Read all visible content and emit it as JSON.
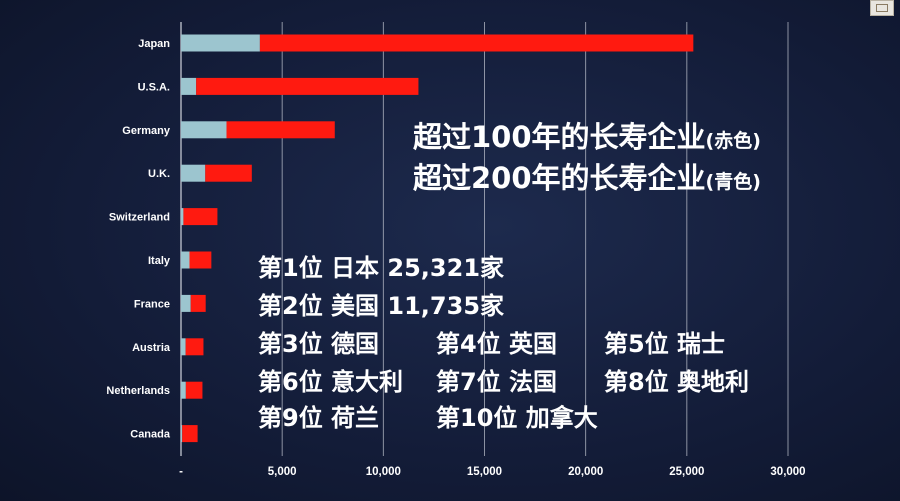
{
  "chart_data": {
    "type": "bar",
    "orientation": "horizontal",
    "stacked": true,
    "categories": [
      "Japan",
      "U.S.A.",
      "Germany",
      "U.K.",
      "Switzerland",
      "Italy",
      "France",
      "Austria",
      "Netherlands",
      "Canada"
    ],
    "series": [
      {
        "name": "",
        "color": "#9cc5cf",
        "values": [
          3900,
          750,
          2250,
          1200,
          120,
          420,
          480,
          230,
          240,
          60
        ]
      },
      {
        "name": "",
        "color": "#ff1a10",
        "values": [
          21421,
          10985,
          5350,
          2300,
          1680,
          1080,
          740,
          880,
          820,
          760
        ]
      }
    ],
    "x_ticks": [
      "-",
      "5,000",
      "10,000",
      "15,000",
      "20,000",
      "25,000",
      "30,000"
    ],
    "xlim": [
      0,
      30000
    ],
    "grid": true,
    "title": "",
    "xlabel": "",
    "ylabel": ""
  },
  "legend_text": {
    "line1_main": "超过100年的长寿企业",
    "line1_note": "(赤色)",
    "line2_main": "超过200年的长寿企业",
    "line2_note": "(青色)"
  },
  "rankings": {
    "r1": "第1位 日本 25,321家",
    "r2": "第2位 美国 11,735家",
    "r3": "第3位 德国",
    "r4": "第4位 英国",
    "r5": "第5位 瑞士",
    "r6": "第6位 意大利",
    "r7": "第7位 法国",
    "r8": "第8位 奥地利",
    "r9": "第9位 荷兰",
    "r10": "第10位 加拿大"
  },
  "colors": {
    "background": "#131c38",
    "century_bar": "#ff1a10",
    "bicentury_bar": "#9cc5cf",
    "grid": "#c8ccd6"
  }
}
